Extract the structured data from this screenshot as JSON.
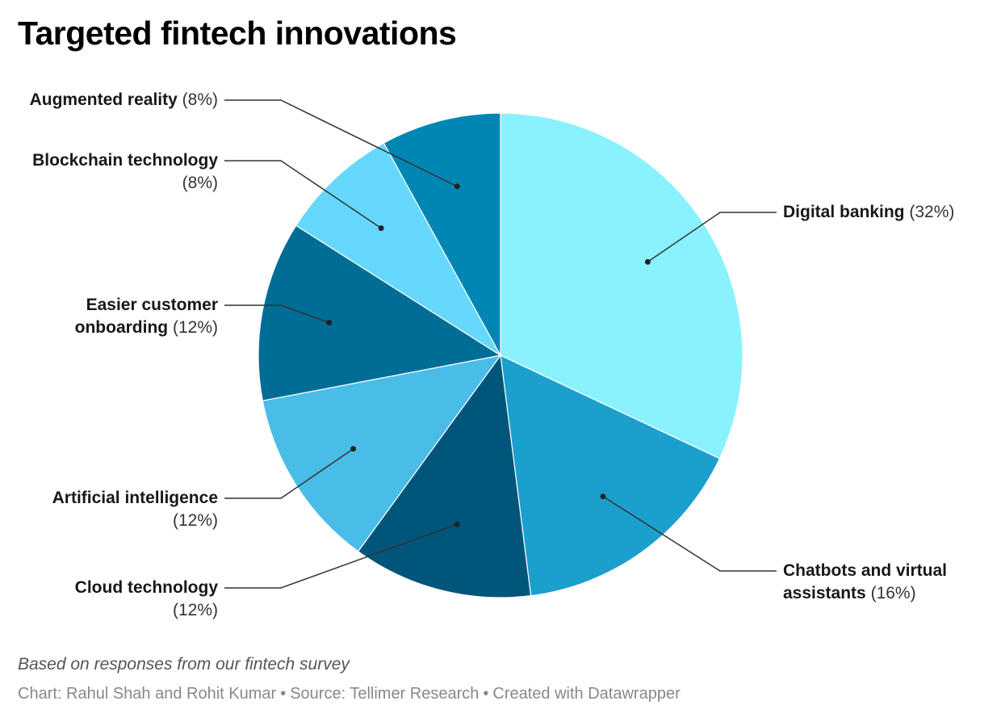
{
  "title": "Targeted fintech innovations",
  "notes": "Based on responses from our fintech survey",
  "byline": {
    "chart": "Chart: Rahul Shah and Rohit Kumar",
    "source": "Source: Tellimer Research",
    "created": "Created with Datawrapper",
    "separator": "•"
  },
  "chart_data": {
    "type": "pie",
    "title": "Targeted fintech innovations",
    "slices": [
      {
        "label": "Digital banking",
        "line2": "",
        "value": 32,
        "value_label": "(32%)",
        "color": "#8af2fe"
      },
      {
        "label": "Chatbots and virtual",
        "line2": "assistants",
        "value": 16,
        "value_label": "(16%)",
        "color": "#1ba0cd"
      },
      {
        "label": "Cloud technology",
        "line2": "",
        "value": 12,
        "value_label": "(12%)",
        "color": "#00557a"
      },
      {
        "label": "Artificial intelligence",
        "line2": "",
        "value": 12,
        "value_label": "(12%)",
        "color": "#49bde8"
      },
      {
        "label": "Easier customer",
        "line2": "onboarding",
        "value": 12,
        "value_label": "(12%)",
        "color": "#006d97"
      },
      {
        "label": "Blockchain technology",
        "line2": "",
        "value": 8,
        "value_label": "(8%)",
        "color": "#66d8fd"
      },
      {
        "label": "Augmented reality",
        "line2": "",
        "value": 8,
        "value_label": "(8%)",
        "color": "#0086b3"
      }
    ]
  }
}
